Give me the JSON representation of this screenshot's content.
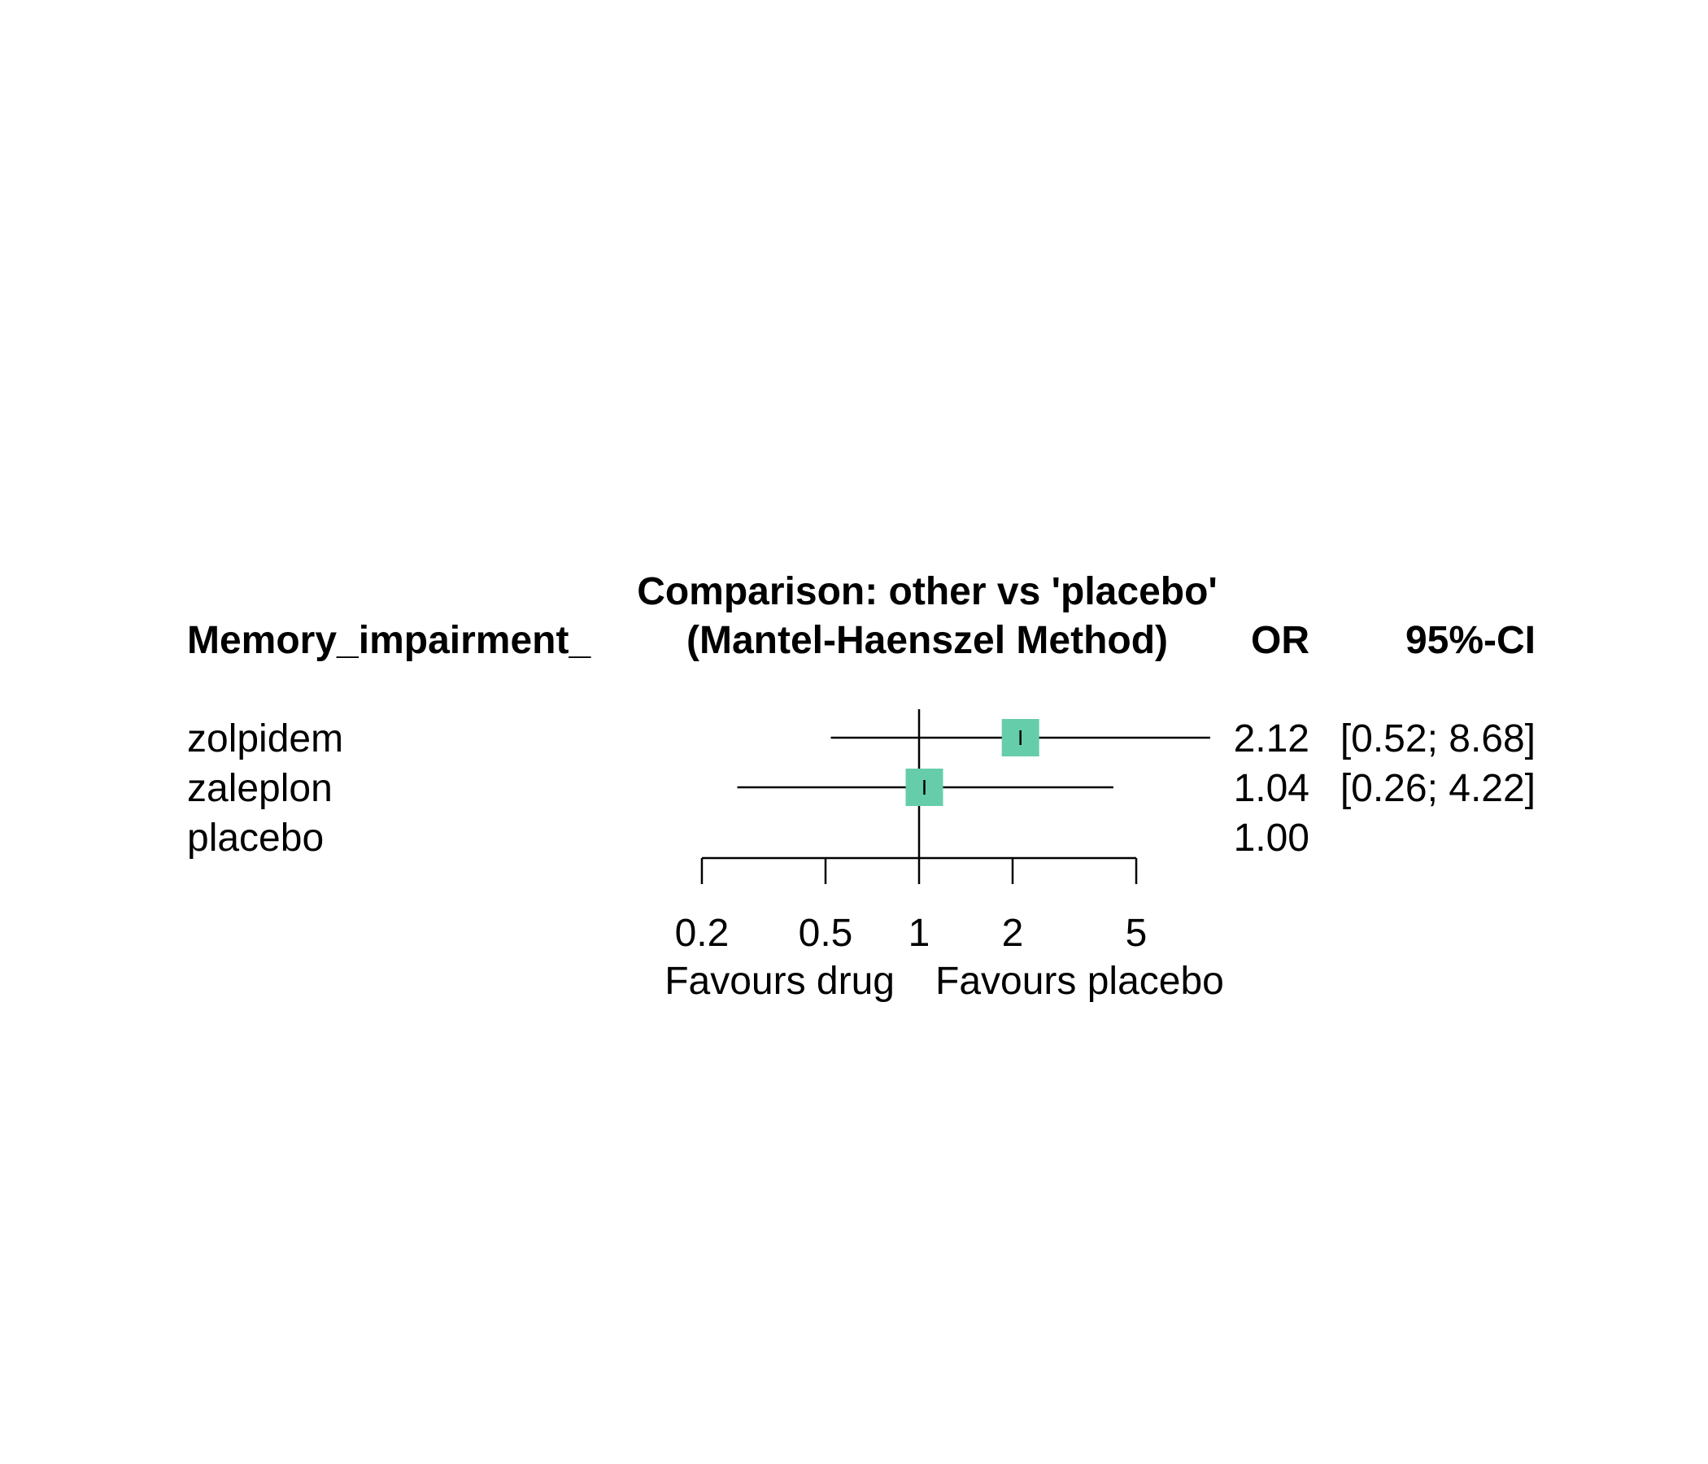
{
  "chart_data": {
    "type": "forest",
    "scale": "log",
    "header": {
      "title_line1": "Comparison: other vs 'placebo'",
      "title_line2": "(Mantel-Haenszel Method)",
      "study_col": "Memory_impairment_",
      "effect_col": "OR",
      "ci_col": "95%-CI"
    },
    "rows": [
      {
        "label": "zolpidem",
        "or": 2.12,
        "lower": 0.52,
        "upper": 8.68,
        "or_text": "2.12",
        "ci_text": "[0.52; 8.68]"
      },
      {
        "label": "zaleplon",
        "or": 1.04,
        "lower": 0.26,
        "upper": 4.22,
        "or_text": "1.04",
        "ci_text": "[0.26; 4.22]"
      },
      {
        "label": "placebo",
        "or": 1.0,
        "lower": null,
        "upper": null,
        "or_text": "1.00",
        "ci_text": ""
      }
    ],
    "x_ticks": [
      0.2,
      0.5,
      1,
      2,
      5
    ],
    "x_tick_labels": [
      "0.2",
      "0.5",
      "1",
      "2",
      "5"
    ],
    "ref_line": 1,
    "left_label": "Favours drug",
    "right_label": "Favours placebo",
    "box_color": "#66cdaa"
  }
}
